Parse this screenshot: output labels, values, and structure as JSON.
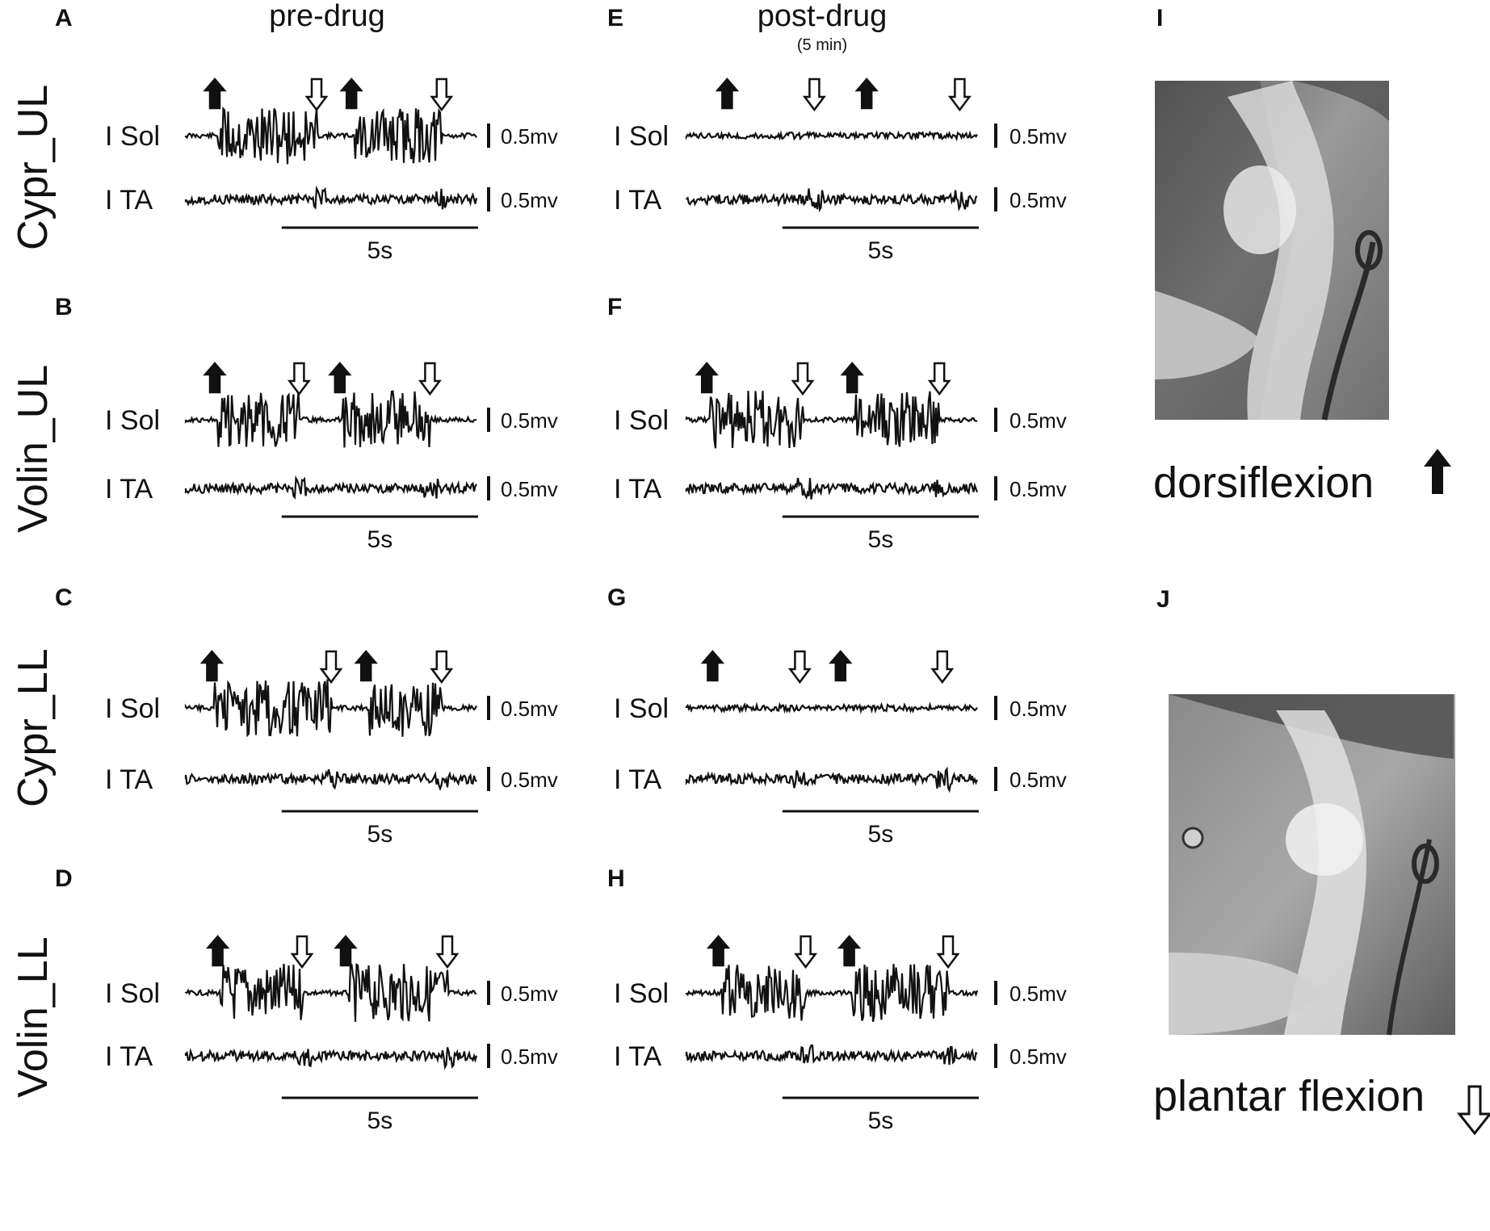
{
  "headers": {
    "pre": "pre-drug",
    "post": "post-drug",
    "post_sub": "(5 min)"
  },
  "colors": {
    "ink": "#111111",
    "photo_bg": "#8f8f8f"
  },
  "panels": [
    {
      "label": "A",
      "row": "Cypr_UL",
      "col": "pre",
      "channels": [
        "I Sol",
        "I TA"
      ],
      "scale": [
        "0.5mv",
        "0.5mv"
      ],
      "time": "5s",
      "sol_level": "high",
      "ta_level": "low",
      "arrows_up": [
        0.1,
        0.57
      ],
      "arrows_down": [
        0.45,
        0.88
      ]
    },
    {
      "label": "B",
      "row": "Volin_UL",
      "col": "pre",
      "channels": [
        "I Sol",
        "I TA"
      ],
      "scale": [
        "0.5mv",
        "0.5mv"
      ],
      "time": "5s",
      "sol_level": "high",
      "ta_level": "low",
      "arrows_up": [
        0.1,
        0.53
      ],
      "arrows_down": [
        0.39,
        0.84
      ]
    },
    {
      "label": "C",
      "row": "Cypr_LL",
      "col": "pre",
      "channels": [
        "I Sol",
        "I TA"
      ],
      "scale": [
        "0.5mv",
        "0.5mv"
      ],
      "time": "5s",
      "sol_level": "high",
      "ta_level": "low",
      "arrows_up": [
        0.09,
        0.62
      ],
      "arrows_down": [
        0.5,
        0.88
      ]
    },
    {
      "label": "D",
      "row": "Volin_LL",
      "col": "pre",
      "channels": [
        "I Sol",
        "I TA"
      ],
      "scale": [
        "0.5mv",
        "0.5mv"
      ],
      "time": "5s",
      "sol_level": "high",
      "ta_level": "low",
      "arrows_up": [
        0.11,
        0.55
      ],
      "arrows_down": [
        0.4,
        0.9
      ]
    },
    {
      "label": "E",
      "row": "Cypr_UL",
      "col": "post",
      "channels": [
        "I Sol",
        "I TA"
      ],
      "scale": [
        "0.5mv",
        "0.5mv"
      ],
      "time": "5s",
      "sol_level": "low",
      "ta_level": "low",
      "arrows_up": [
        0.14,
        0.62
      ],
      "arrows_down": [
        0.44,
        0.94
      ]
    },
    {
      "label": "F",
      "row": "Volin_UL",
      "col": "post",
      "channels": [
        "I Sol",
        "I TA"
      ],
      "scale": [
        "0.5mv",
        "0.5mv"
      ],
      "time": "5s",
      "sol_level": "high",
      "ta_level": "low",
      "arrows_up": [
        0.07,
        0.57
      ],
      "arrows_down": [
        0.4,
        0.87
      ]
    },
    {
      "label": "G",
      "row": "Cypr_LL",
      "col": "post",
      "channels": [
        "I Sol",
        "I TA"
      ],
      "scale": [
        "0.5mv",
        "0.5mv"
      ],
      "time": "5s",
      "sol_level": "low",
      "ta_level": "low",
      "arrows_up": [
        0.09,
        0.53
      ],
      "arrows_down": [
        0.39,
        0.88
      ]
    },
    {
      "label": "H",
      "row": "Volin_LL",
      "col": "post",
      "channels": [
        "I Sol",
        "I TA"
      ],
      "scale": [
        "0.5mv",
        "0.5mv"
      ],
      "time": "5s",
      "sol_level": "high",
      "ta_level": "low",
      "arrows_up": [
        0.11,
        0.56
      ],
      "arrows_down": [
        0.41,
        0.9
      ]
    }
  ],
  "photos": [
    {
      "label": "I",
      "caption": "dorsiflexion",
      "arrow": "filled-up-arrow"
    },
    {
      "label": "J",
      "caption": "plantar flexion",
      "arrow": "hollow-down-arrow"
    }
  ]
}
